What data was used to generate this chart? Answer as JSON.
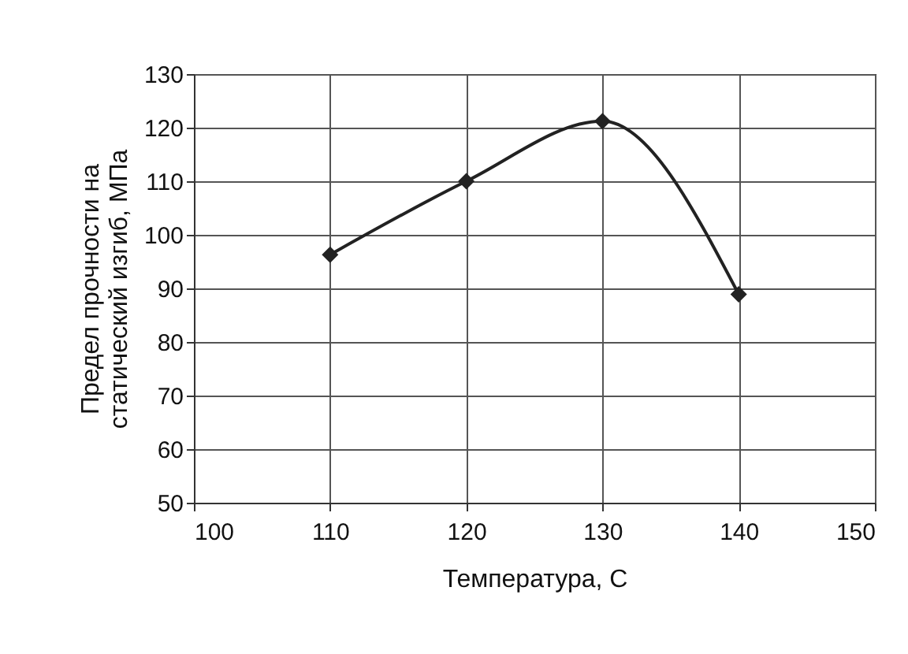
{
  "chart_data": {
    "type": "line",
    "xlabel": "Температура, С",
    "ylabel": "Предел прочности на\nстатический изгиб, МПа",
    "x": [
      110,
      120,
      130,
      140
    ],
    "series": [
      {
        "color": "#222222",
        "values": [
          96.3,
          110,
          121.2,
          88.9
        ]
      }
    ],
    "xlim": [
      100,
      150
    ],
    "xticks": [
      100,
      110,
      120,
      130,
      140,
      150
    ],
    "ylim": [
      50,
      130
    ],
    "yticks": [
      50,
      60,
      70,
      80,
      90,
      100,
      110,
      120,
      130
    ],
    "grid": true,
    "marker": "diamond",
    "line_style": "solid"
  }
}
